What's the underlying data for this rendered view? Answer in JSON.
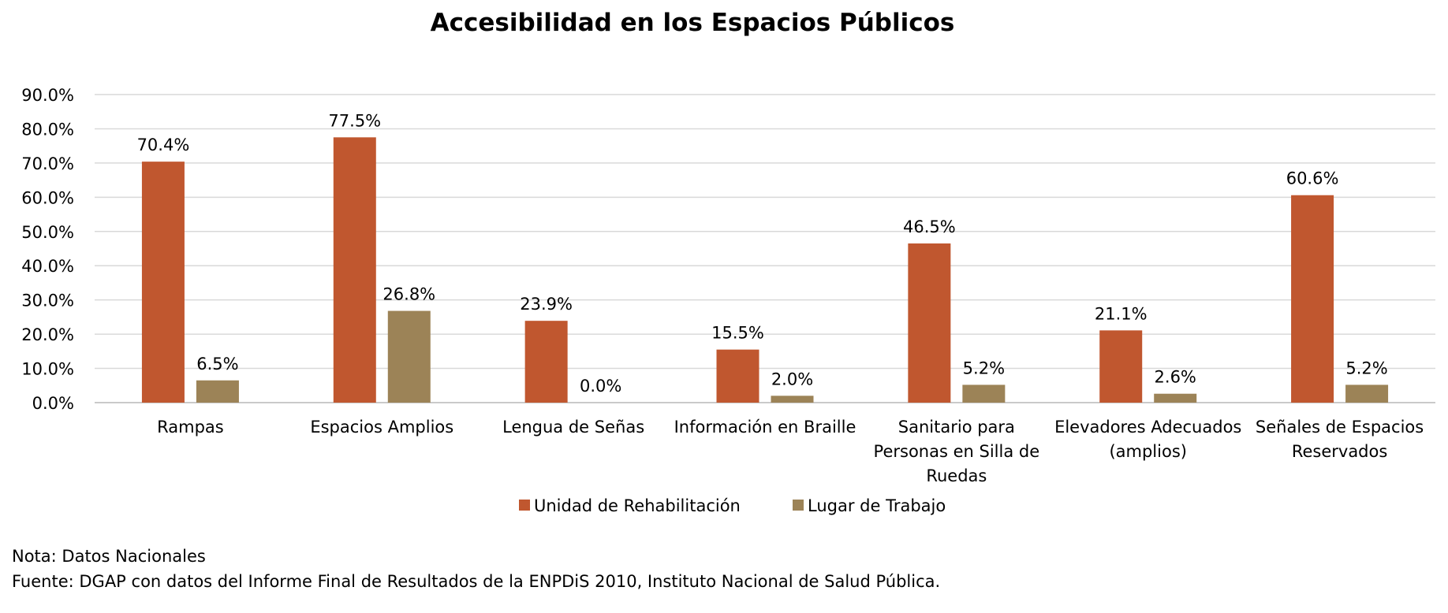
{
  "chart_data": {
    "type": "bar",
    "title": "Accesibilidad en los Espacios Públicos",
    "categories": [
      [
        "Rampas"
      ],
      [
        "Espacios Amplios"
      ],
      [
        "Lengua de Señas"
      ],
      [
        "Información en Braille"
      ],
      [
        "Sanitario para",
        "Personas en Silla de",
        "Ruedas"
      ],
      [
        "Elevadores Adecuados",
        "(amplios)"
      ],
      [
        "Señales de Espacios",
        "Reservados"
      ]
    ],
    "series": [
      {
        "name": "Unidad de Rehabilitación",
        "color": "#C0572F",
        "values": [
          70.4,
          77.5,
          23.9,
          15.5,
          46.5,
          21.1,
          60.6
        ],
        "labels": [
          "70.4%",
          "77.5%",
          "23.9%",
          "15.5%",
          "46.5%",
          "21.1%",
          "60.6%"
        ]
      },
      {
        "name": "Lugar de Trabajo",
        "color": "#9C8357",
        "values": [
          6.5,
          26.8,
          0.0,
          2.0,
          5.2,
          2.6,
          5.2
        ],
        "labels": [
          "6.5%",
          "26.8%",
          "0.0%",
          "2.0%",
          "5.2%",
          "2.6%",
          "5.2%"
        ]
      }
    ],
    "ylim": [
      0,
      90
    ],
    "yticks": [
      0,
      10,
      20,
      30,
      40,
      50,
      60,
      70,
      80,
      90
    ],
    "ytick_labels": [
      "0.0%",
      "10.0%",
      "20.0%",
      "30.0%",
      "40.0%",
      "50.0%",
      "60.0%",
      "70.0%",
      "80.0%",
      "90.0%"
    ],
    "xlabel": "",
    "ylabel": "",
    "grid": true,
    "gridline_color": "#D9D9D9",
    "legend_position": "bottom-center"
  },
  "notes": {
    "nota": "Nota: Datos Nacionales",
    "fuente": "Fuente: DGAP con datos del Informe Final de Resultados de la ENPDiS 2010, Instituto Nacional de Salud Pública."
  }
}
